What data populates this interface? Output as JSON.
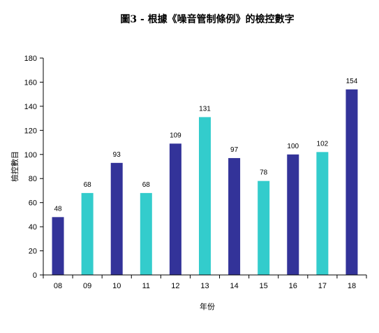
{
  "chart_data": {
    "type": "bar",
    "title": "圖3 - 根據《噪音管制條例》的檢控數字",
    "xlabel": "年份",
    "ylabel": "檢控數目",
    "categories": [
      "08",
      "09",
      "10",
      "11",
      "12",
      "13",
      "14",
      "15",
      "16",
      "17",
      "18"
    ],
    "values": [
      48,
      68,
      93,
      68,
      109,
      131,
      97,
      78,
      100,
      102,
      154
    ],
    "ylim": [
      0,
      180
    ],
    "yticks": [
      0,
      20,
      40,
      60,
      80,
      100,
      120,
      140,
      160,
      180
    ],
    "grid": false,
    "legend": "none",
    "data_labels": true,
    "colors": {
      "even_bars": "#333399",
      "odd_bars": "#33CCCC",
      "axis": "#000000"
    }
  }
}
